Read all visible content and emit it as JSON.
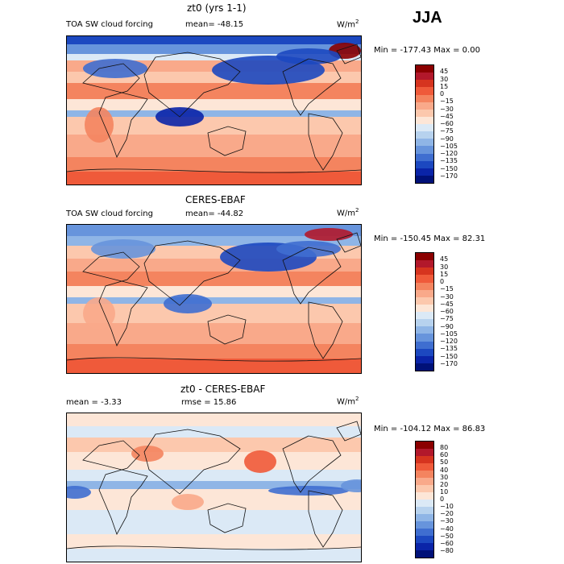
{
  "season": "JJA",
  "panels": [
    {
      "title": "zt0 (yrs 1-1)",
      "left_label": "TOA SW cloud forcing",
      "mid_label": "mean= -48.15",
      "units": "W/m",
      "units_sup": "2",
      "minmax": "Min = -177.43 Max =    0.00",
      "colorbar": {
        "labels": [
          "45",
          "30",
          "15",
          "0",
          "−15",
          "−30",
          "−45",
          "−60",
          "−75",
          "−90",
          "−105",
          "−120",
          "−135",
          "−150",
          "−170"
        ],
        "colors": [
          "#8b0000",
          "#b2182b",
          "#d6341f",
          "#ef5a3a",
          "#f4845f",
          "#f9a98a",
          "#fcc8ad",
          "#fde6d7",
          "#dbe9f6",
          "#b7d2ee",
          "#8fb5e6",
          "#6794dc",
          "#3f6ed0",
          "#1c48c0",
          "#0a24a8",
          "#001178"
        ]
      },
      "map_theme": "control"
    },
    {
      "title": "CERES-EBAF",
      "left_label": "TOA SW cloud forcing",
      "mid_label": "mean= -44.82",
      "units": "W/m",
      "units_sup": "2",
      "minmax": "Min = -150.45 Max =  82.31",
      "colorbar": {
        "labels": [
          "45",
          "30",
          "15",
          "0",
          "−15",
          "−30",
          "−45",
          "−60",
          "−75",
          "−90",
          "−105",
          "−120",
          "−135",
          "−150",
          "−170"
        ],
        "colors": [
          "#8b0000",
          "#b2182b",
          "#d6341f",
          "#ef5a3a",
          "#f4845f",
          "#f9a98a",
          "#fcc8ad",
          "#fde6d7",
          "#dbe9f6",
          "#b7d2ee",
          "#8fb5e6",
          "#6794dc",
          "#3f6ed0",
          "#1c48c0",
          "#0a24a8",
          "#001178"
        ]
      },
      "map_theme": "obs"
    },
    {
      "title": "zt0 - CERES-EBAF",
      "left_label": "mean =   -3.33",
      "mid_label": "rmse =  15.86",
      "units": "W/m",
      "units_sup": "2",
      "minmax": "Min = -104.12 Max =  86.83",
      "colorbar": {
        "labels": [
          "80",
          "60",
          "50",
          "40",
          "30",
          "20",
          "10",
          "0",
          "−10",
          "−20",
          "−30",
          "−40",
          "−50",
          "−60",
          "−80"
        ],
        "colors": [
          "#8b0000",
          "#b2182b",
          "#d6341f",
          "#ef5a3a",
          "#f4845f",
          "#f9a98a",
          "#fcc8ad",
          "#fde6d7",
          "#dbe9f6",
          "#b7d2ee",
          "#8fb5e6",
          "#6794dc",
          "#3f6ed0",
          "#1c48c0",
          "#0a24a8",
          "#001178"
        ]
      },
      "map_theme": "diff"
    }
  ]
}
